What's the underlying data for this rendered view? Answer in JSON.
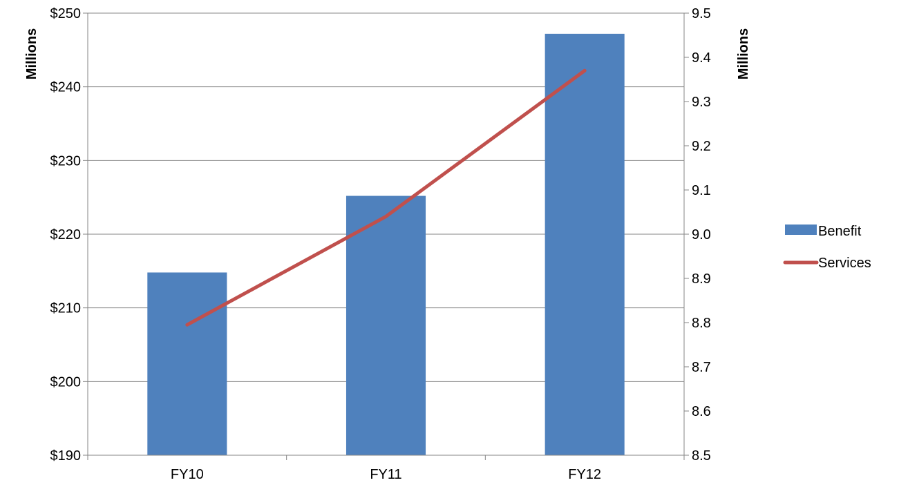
{
  "chart_data": {
    "type": "bar",
    "categories": [
      "FY10",
      "FY11",
      "FY12"
    ],
    "title": "",
    "xlabel": "",
    "series": [
      {
        "name": "Benefit",
        "type": "bar",
        "axis": "left",
        "values": [
          214.8,
          225.2,
          247.2
        ],
        "color": "#4f81bd"
      },
      {
        "name": "Services",
        "type": "line",
        "axis": "right",
        "values": [
          8.795,
          9.04,
          9.37
        ],
        "color": "#c0504d"
      }
    ],
    "y_left": {
      "label": "Millions",
      "ylim": [
        190,
        250
      ],
      "ticks": [
        190,
        200,
        210,
        220,
        230,
        240,
        250
      ],
      "tick_labels": [
        "$190",
        "$200",
        "$210",
        "$220",
        "$230",
        "$240",
        "$250"
      ]
    },
    "y_right": {
      "label": "Millions",
      "ylim": [
        8.5,
        9.5
      ],
      "ticks": [
        8.5,
        8.6,
        8.7,
        8.8,
        8.9,
        9.0,
        9.1,
        9.2,
        9.3,
        9.4,
        9.5
      ],
      "tick_labels": [
        "8.5",
        "8.6",
        "8.7",
        "8.8",
        "8.9",
        "9.0",
        "9.1",
        "9.2",
        "9.3",
        "9.4",
        "9.5"
      ]
    },
    "grid": true,
    "legend_position": "right"
  }
}
